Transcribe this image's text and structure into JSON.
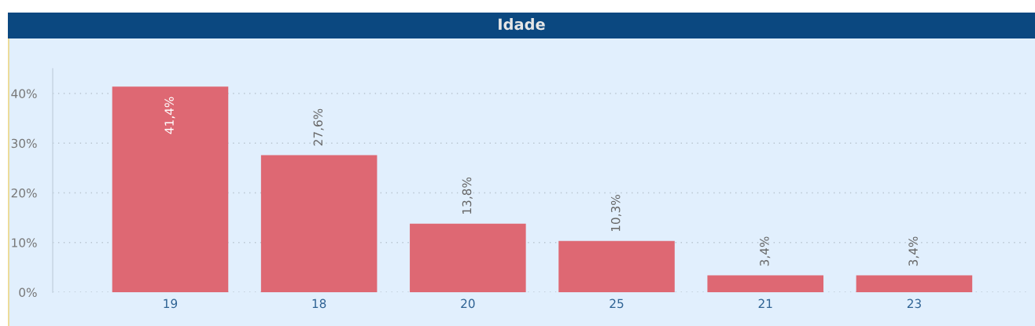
{
  "chart_data": {
    "type": "bar",
    "title": "Idade",
    "categories": [
      "19",
      "18",
      "20",
      "25",
      "21",
      "23"
    ],
    "values": [
      41.4,
      27.6,
      13.8,
      10.3,
      3.4,
      3.4
    ],
    "color": "#de6873",
    "value_labels": [
      "41,4%",
      "27,6%",
      "13,8%",
      "10,3%",
      "3,4%",
      "3,4%"
    ],
    "ylim": [
      0,
      45
    ],
    "yticks": [
      {
        "value": 0,
        "label": "0%"
      },
      {
        "value": 10,
        "label": "10%"
      },
      {
        "value": 20,
        "label": "20%"
      },
      {
        "value": 30,
        "label": "30%"
      },
      {
        "value": 40,
        "label": "40%"
      }
    ],
    "grid": "y"
  }
}
